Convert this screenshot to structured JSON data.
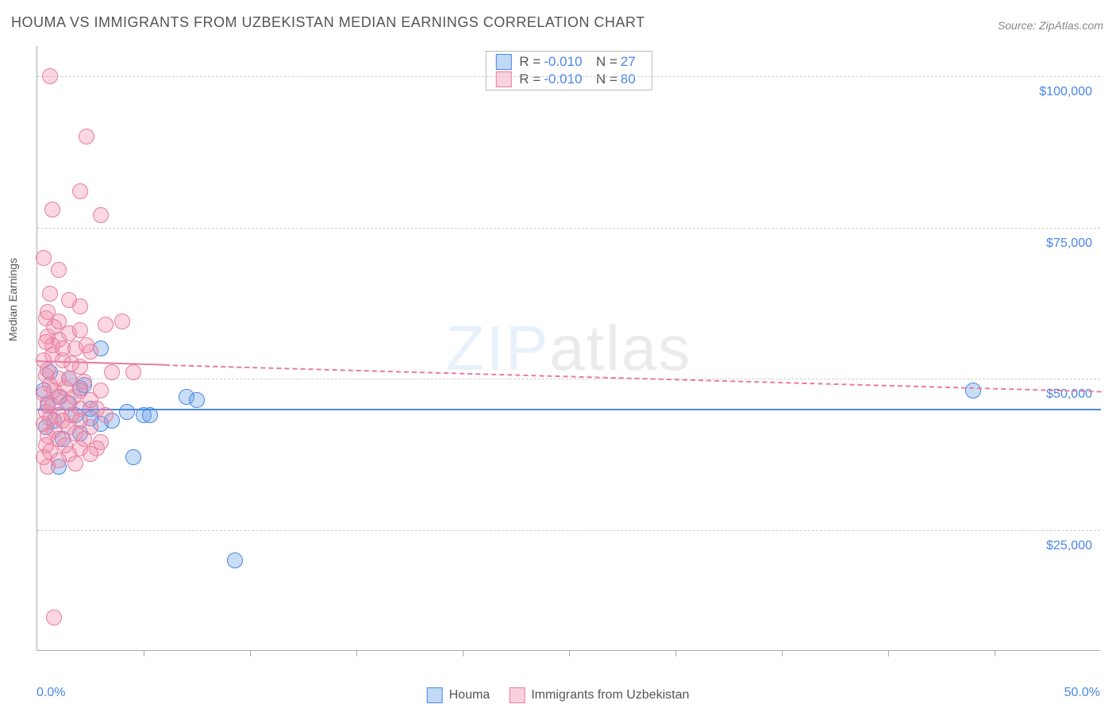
{
  "title": "HOUMA VS IMMIGRANTS FROM UZBEKISTAN MEDIAN EARNINGS CORRELATION CHART",
  "source": "Source: ZipAtlas.com",
  "watermark": {
    "part1": "ZIP",
    "part2": "atlas"
  },
  "ylabel": "Median Earnings",
  "chart": {
    "type": "scatter",
    "xlim": [
      0,
      50
    ],
    "ylim": [
      5000,
      105000
    ],
    "x_axis": {
      "min_label": "0.0%",
      "max_label": "50.0%",
      "tick_positions_pct": [
        10,
        20,
        30,
        40,
        50,
        60,
        70,
        80,
        90
      ]
    },
    "y_gridlines": [
      {
        "value": 25000,
        "label": "$25,000"
      },
      {
        "value": 50000,
        "label": "$50,000"
      },
      {
        "value": 75000,
        "label": "$75,000"
      },
      {
        "value": 100000,
        "label": "$100,000"
      }
    ],
    "series": [
      {
        "name": "Houma",
        "color": "#4a86e8",
        "fill": "rgba(100,160,230,0.35)",
        "marker_radius": 10,
        "R": "-0.010",
        "N": "27",
        "trend": {
          "y_start": 45000,
          "y_end": 45000,
          "solid_until_x": 50,
          "width": 2.5
        },
        "points": [
          {
            "x": 0.3,
            "y": 48000
          },
          {
            "x": 1.0,
            "y": 47000
          },
          {
            "x": 1.5,
            "y": 46000
          },
          {
            "x": 0.8,
            "y": 43000
          },
          {
            "x": 2.0,
            "y": 48500
          },
          {
            "x": 2.5,
            "y": 45000
          },
          {
            "x": 3.0,
            "y": 55000
          },
          {
            "x": 1.2,
            "y": 40000
          },
          {
            "x": 4.2,
            "y": 44500
          },
          {
            "x": 4.5,
            "y": 37000
          },
          {
            "x": 3.5,
            "y": 43000
          },
          {
            "x": 5.0,
            "y": 44000
          },
          {
            "x": 5.3,
            "y": 44000
          },
          {
            "x": 7.0,
            "y": 47000
          },
          {
            "x": 7.5,
            "y": 46500
          },
          {
            "x": 1.0,
            "y": 35500
          },
          {
            "x": 0.5,
            "y": 45500
          },
          {
            "x": 2.2,
            "y": 49000
          },
          {
            "x": 1.8,
            "y": 44000
          },
          {
            "x": 3.0,
            "y": 42500
          },
          {
            "x": 2.0,
            "y": 41000
          },
          {
            "x": 0.6,
            "y": 51000
          },
          {
            "x": 1.5,
            "y": 50000
          },
          {
            "x": 2.5,
            "y": 43500
          },
          {
            "x": 44.0,
            "y": 48000
          },
          {
            "x": 9.3,
            "y": 20000
          },
          {
            "x": 0.4,
            "y": 42000
          }
        ]
      },
      {
        "name": "Immigrants from Uzbekistan",
        "color": "#e87ca0",
        "fill": "rgba(240,140,170,0.35)",
        "marker_radius": 10,
        "R": "-0.010",
        "N": "80",
        "trend": {
          "y_start": 53000,
          "y_end": 48000,
          "solid_until_x": 6,
          "width": 2
        },
        "points": [
          {
            "x": 0.6,
            "y": 100000
          },
          {
            "x": 2.3,
            "y": 90000
          },
          {
            "x": 2.0,
            "y": 81000
          },
          {
            "x": 0.7,
            "y": 78000
          },
          {
            "x": 3.0,
            "y": 77000
          },
          {
            "x": 0.3,
            "y": 70000
          },
          {
            "x": 1.0,
            "y": 68000
          },
          {
            "x": 0.6,
            "y": 64000
          },
          {
            "x": 1.5,
            "y": 63000
          },
          {
            "x": 0.4,
            "y": 60000
          },
          {
            "x": 2.0,
            "y": 62000
          },
          {
            "x": 3.2,
            "y": 59000
          },
          {
            "x": 4.0,
            "y": 59500
          },
          {
            "x": 0.5,
            "y": 57000
          },
          {
            "x": 1.0,
            "y": 56500
          },
          {
            "x": 1.8,
            "y": 55000
          },
          {
            "x": 0.7,
            "y": 54000
          },
          {
            "x": 2.5,
            "y": 54500
          },
          {
            "x": 0.3,
            "y": 53000
          },
          {
            "x": 1.2,
            "y": 53000
          },
          {
            "x": 1.6,
            "y": 52500
          },
          {
            "x": 2.0,
            "y": 52000
          },
          {
            "x": 0.5,
            "y": 51500
          },
          {
            "x": 3.5,
            "y": 51000
          },
          {
            "x": 4.5,
            "y": 51000
          },
          {
            "x": 0.4,
            "y": 50500
          },
          {
            "x": 1.0,
            "y": 50000
          },
          {
            "x": 1.5,
            "y": 50000
          },
          {
            "x": 2.2,
            "y": 49500
          },
          {
            "x": 0.6,
            "y": 49000
          },
          {
            "x": 1.3,
            "y": 48500
          },
          {
            "x": 0.8,
            "y": 48000
          },
          {
            "x": 2.0,
            "y": 48000
          },
          {
            "x": 3.0,
            "y": 48000
          },
          {
            "x": 0.3,
            "y": 47500
          },
          {
            "x": 1.1,
            "y": 47000
          },
          {
            "x": 1.7,
            "y": 47000
          },
          {
            "x": 2.5,
            "y": 46500
          },
          {
            "x": 0.5,
            "y": 46000
          },
          {
            "x": 1.4,
            "y": 46000
          },
          {
            "x": 0.7,
            "y": 45500
          },
          {
            "x": 2.0,
            "y": 45000
          },
          {
            "x": 2.8,
            "y": 45000
          },
          {
            "x": 0.4,
            "y": 44500
          },
          {
            "x": 1.0,
            "y": 44000
          },
          {
            "x": 1.6,
            "y": 44000
          },
          {
            "x": 3.2,
            "y": 44000
          },
          {
            "x": 0.6,
            "y": 43500
          },
          {
            "x": 1.2,
            "y": 43000
          },
          {
            "x": 2.0,
            "y": 43000
          },
          {
            "x": 0.3,
            "y": 42500
          },
          {
            "x": 1.5,
            "y": 42000
          },
          {
            "x": 2.5,
            "y": 42000
          },
          {
            "x": 0.8,
            "y": 41500
          },
          {
            "x": 1.8,
            "y": 41000
          },
          {
            "x": 0.5,
            "y": 40500
          },
          {
            "x": 1.0,
            "y": 40000
          },
          {
            "x": 2.2,
            "y": 40000
          },
          {
            "x": 3.0,
            "y": 39500
          },
          {
            "x": 0.4,
            "y": 39000
          },
          {
            "x": 1.3,
            "y": 39000
          },
          {
            "x": 2.0,
            "y": 38500
          },
          {
            "x": 2.8,
            "y": 38500
          },
          {
            "x": 0.6,
            "y": 38000
          },
          {
            "x": 1.5,
            "y": 37500
          },
          {
            "x": 2.5,
            "y": 37500
          },
          {
            "x": 0.3,
            "y": 37000
          },
          {
            "x": 1.0,
            "y": 36500
          },
          {
            "x": 1.8,
            "y": 36000
          },
          {
            "x": 0.5,
            "y": 35500
          },
          {
            "x": 1.2,
            "y": 55000
          },
          {
            "x": 0.7,
            "y": 55500
          },
          {
            "x": 2.3,
            "y": 55500
          },
          {
            "x": 0.4,
            "y": 56000
          },
          {
            "x": 1.5,
            "y": 57500
          },
          {
            "x": 0.8,
            "y": 58500
          },
          {
            "x": 2.0,
            "y": 58000
          },
          {
            "x": 1.0,
            "y": 59500
          },
          {
            "x": 0.5,
            "y": 61000
          },
          {
            "x": 0.8,
            "y": 10500
          }
        ]
      }
    ],
    "legend": {
      "stats_box": {
        "rows": [
          {
            "swatch": "blue",
            "R_label": "R =",
            "N_label": "N ="
          },
          {
            "swatch": "pink",
            "R_label": "R =",
            "N_label": "N ="
          }
        ]
      },
      "bottom": [
        {
          "swatch": "blue",
          "label": "Houma"
        },
        {
          "swatch": "pink",
          "label": "Immigrants from Uzbekistan"
        }
      ]
    }
  }
}
